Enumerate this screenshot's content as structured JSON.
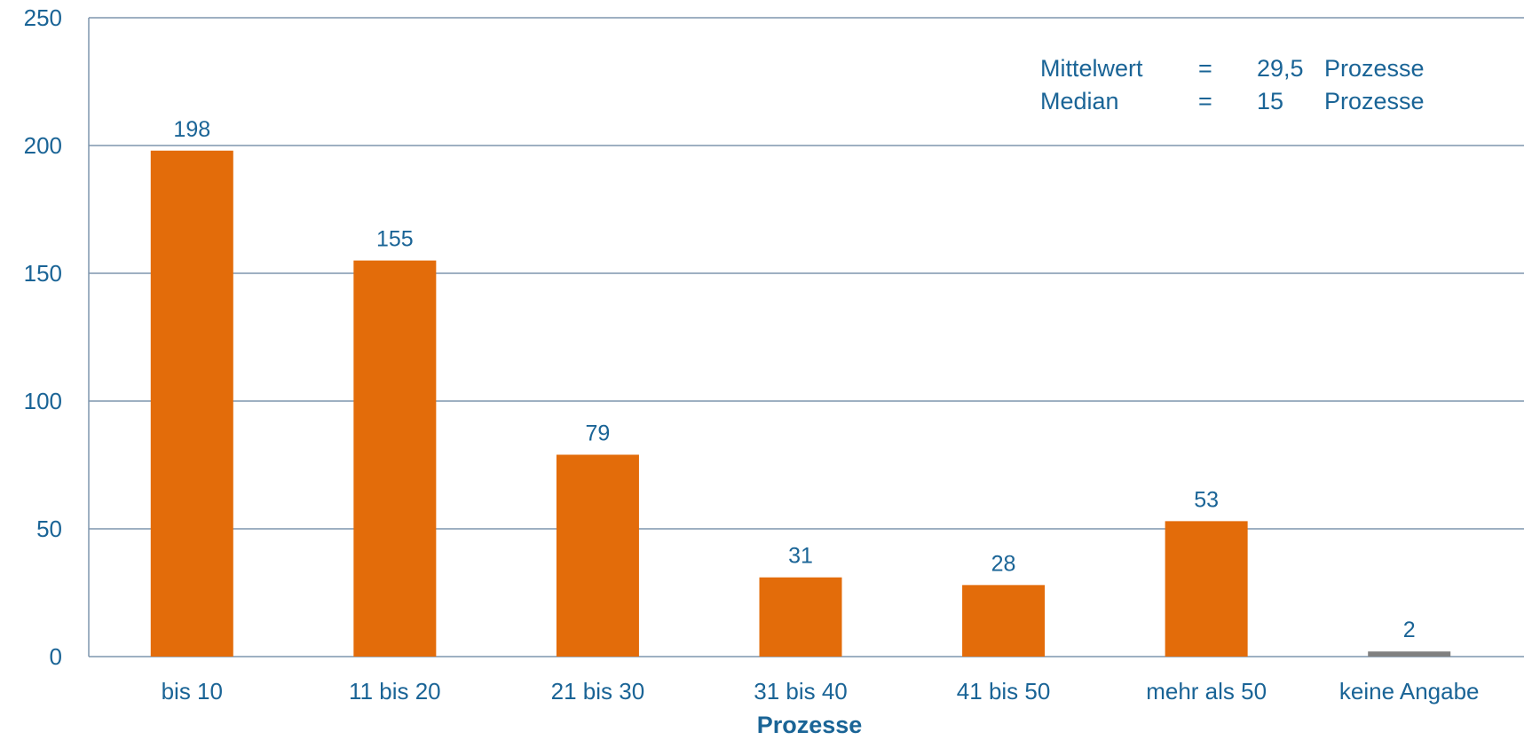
{
  "chart_data": {
    "type": "bar",
    "categories": [
      "bis 10",
      "11 bis 20",
      "21 bis 30",
      "31 bis 40",
      "41 bis 50",
      "mehr als 50",
      "keine Angabe"
    ],
    "values": [
      198,
      155,
      79,
      31,
      28,
      53,
      2
    ],
    "bar_colors": [
      "#e36c0a",
      "#e36c0a",
      "#e36c0a",
      "#e36c0a",
      "#e36c0a",
      "#e36c0a",
      "#808080"
    ],
    "xlabel": "Prozesse",
    "ylabel": "",
    "ylim": [
      0,
      250
    ],
    "yticks": [
      0,
      50,
      100,
      150,
      200,
      250
    ],
    "grid": true,
    "annotations": [
      [
        "Mittelwert",
        "=",
        "29,5",
        "Prozesse"
      ],
      [
        "Median",
        "=",
        "15",
        "Prozesse"
      ]
    ]
  },
  "colors": {
    "bar": "#e36c0a",
    "bar_no_answer": "#808080",
    "text": "#1a6496",
    "grid": "#7f95ad"
  }
}
